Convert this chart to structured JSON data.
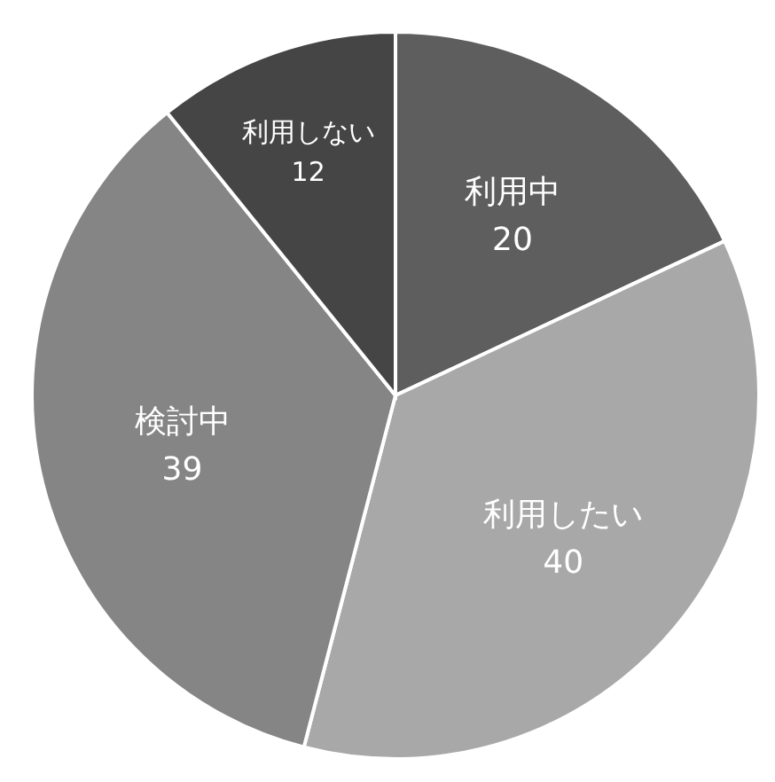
{
  "chart_data": {
    "type": "pie",
    "categories": [
      "利用中",
      "利用したい",
      "検討中",
      "利用しない"
    ],
    "values": [
      20,
      40,
      39,
      12
    ],
    "colors": [
      "#5e5e5e",
      "#a8a8a8",
      "#858585",
      "#454545"
    ],
    "data_labels": true,
    "legend": false
  }
}
